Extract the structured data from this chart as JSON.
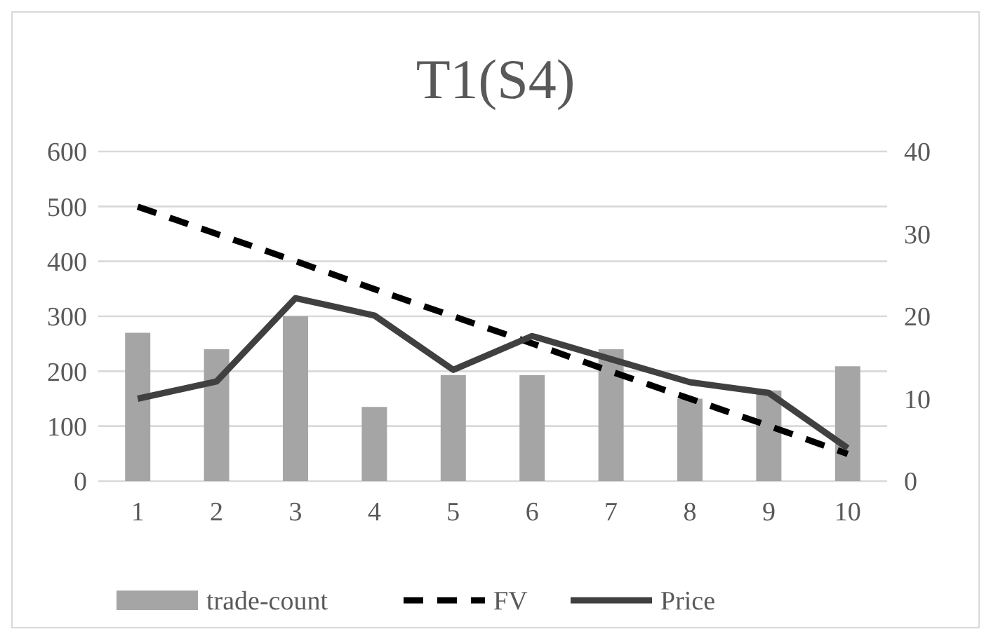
{
  "chart_data": {
    "type": "bar",
    "title": "T1(S4)",
    "categories": [
      "1",
      "2",
      "3",
      "4",
      "5",
      "6",
      "7",
      "8",
      "9",
      "10"
    ],
    "series": [
      {
        "name": "trade-count",
        "color": "#a5a5a5",
        "values": [
          270,
          240,
          300,
          135,
          193,
          193,
          240,
          150,
          165,
          209
        ]
      },
      {
        "name": "FV",
        "type": "line",
        "axis": "y2",
        "color": "#000000",
        "line_style": "dashed",
        "values": [
          33.3,
          30,
          26.7,
          23.3,
          20,
          16.7,
          13.3,
          10,
          6.7,
          3.3
        ]
      },
      {
        "name": "Price",
        "type": "line",
        "axis": "y2",
        "color": "#404040",
        "line_style": "solid",
        "values": [
          10,
          12.1,
          22.2,
          20.1,
          13.5,
          17.6,
          14.8,
          12,
          10.7,
          4
        ]
      }
    ],
    "ylim": [
      0,
      600
    ],
    "yticks": [
      0,
      100,
      200,
      300,
      400,
      500,
      600
    ],
    "y2lim": [
      0,
      40
    ],
    "y2ticks": [
      0,
      10,
      20,
      30,
      40
    ],
    "grid": "y",
    "legend": "bottom"
  }
}
